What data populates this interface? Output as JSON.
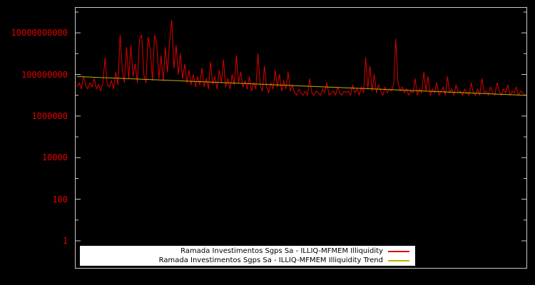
{
  "window": {
    "background": "#000000"
  },
  "chart_data": {
    "type": "line",
    "title": "",
    "xlabel": "",
    "ylabel": "",
    "axis_color": "#c8c8c8",
    "grid": false,
    "x_axis": {
      "tick_labels": []
    },
    "y_axis": {
      "scale": "log",
      "tick_label_color": "#e00000",
      "tick_labels": [
        "1",
        "100",
        "10000",
        "1000000",
        "100000000",
        "10000000000"
      ],
      "tick_values": [
        1,
        100,
        10000,
        1000000,
        100000000,
        10000000000
      ],
      "ylim": [
        0.05,
        160000000000.0
      ]
    },
    "legend": {
      "position": "bottom-center",
      "background": "#ffffff",
      "text_color": "#000000"
    },
    "series": [
      {
        "name": "Ramada Investimentos Sgps Sa - ILLIQ-MFMEM Illiquidity",
        "color": "#e00000",
        "values": [
          25000000.0,
          40000000.0,
          20000000.0,
          80000000.0,
          32000000.0,
          20000000.0,
          40000000.0,
          25000000.0,
          63000000.0,
          20000000.0,
          32000000.0,
          16000000.0,
          40000000.0,
          630000000.0,
          32000000.0,
          25000000.0,
          50000000.0,
          20000000.0,
          130000000.0,
          32000000.0,
          8000000000.0,
          160000000.0,
          40000000.0,
          2000000000.0,
          63000000.0,
          2500000000.0,
          80000000.0,
          320000000.0,
          40000000.0,
          5000000000.0,
          8000000000.0,
          100000000.0,
          40000000.0,
          6300000000.0,
          1600000000.0,
          50000000.0,
          8000000000.0,
          3200000000.0,
          63000000.0,
          800000000.0,
          50000000.0,
          2000000000.0,
          130000000.0,
          4000000000.0,
          40000000000.0,
          200000000.0,
          2500000000.0,
          100000000.0,
          1000000000.0,
          63000000.0,
          320000000.0,
          40000000.0,
          160000000.0,
          32000000.0,
          100000000.0,
          25000000.0,
          80000000.0,
          32000000.0,
          200000000.0,
          25000000.0,
          63000000.0,
          20000000.0,
          400000000.0,
          32000000.0,
          80000000.0,
          20000000.0,
          160000000.0,
          40000000.0,
          500000000.0,
          25000000.0,
          63000000.0,
          20000000.0,
          100000000.0,
          32000000.0,
          800000000.0,
          40000000.0,
          130000000.0,
          25000000.0,
          50000000.0,
          20000000.0,
          80000000.0,
          16000000.0,
          40000000.0,
          20000000.0,
          1000000000.0,
          32000000.0,
          16000000.0,
          250000000.0,
          25000000.0,
          13000000.0,
          40000000.0,
          20000000.0,
          160000000.0,
          25000000.0,
          100000000.0,
          16000000.0,
          50000000.0,
          20000000.0,
          130000000.0,
          16000000.0,
          32000000.0,
          13000000.0,
          10000000.0,
          20000000.0,
          13000000.0,
          10000000.0,
          16000000.0,
          10000000.0,
          63000000.0,
          13000000.0,
          10000000.0,
          16000000.0,
          13000000.0,
          10000000.0,
          20000000.0,
          13000000.0,
          40000000.0,
          10000000.0,
          13000000.0,
          16000000.0,
          10000000.0,
          25000000.0,
          13000000.0,
          10000000.0,
          16000000.0,
          13000000.0,
          16000000.0,
          10000000.0,
          32000000.0,
          13000000.0,
          20000000.0,
          10000000.0,
          25000000.0,
          13000000.0,
          630000000.0,
          20000000.0,
          250000000.0,
          16000000.0,
          100000000.0,
          13000000.0,
          32000000.0,
          16000000.0,
          10000000.0,
          25000000.0,
          13000000.0,
          20000000.0,
          16000000.0,
          32000000.0,
          5000000000.0,
          40000000.0,
          16000000.0,
          25000000.0,
          13000000.0,
          20000000.0,
          10000000.0,
          16000000.0,
          13000000.0,
          63000000.0,
          10000000.0,
          20000000.0,
          13000000.0,
          130000000.0,
          16000000.0,
          80000000.0,
          10000000.0,
          20000000.0,
          13000000.0,
          40000000.0,
          10000000.0,
          16000000.0,
          25000000.0,
          10000000.0,
          80000000.0,
          13000000.0,
          20000000.0,
          10000000.0,
          32000000.0,
          13000000.0,
          16000000.0,
          10000000.0,
          20000000.0,
          13000000.0,
          10000000.0,
          40000000.0,
          13000000.0,
          10000000.0,
          20000000.0,
          10000000.0,
          63000000.0,
          13000000.0,
          16000000.0,
          10000000.0,
          25000000.0,
          13000000.0,
          10000000.0,
          40000000.0,
          16000000.0,
          10000000.0,
          20000000.0,
          13000000.0,
          32000000.0,
          10000000.0,
          16000000.0,
          13000000.0,
          25000000.0,
          10000000.0,
          16000000.0,
          13000000.0,
          10000000.0
        ]
      },
      {
        "name": "Ramada Investimentos Sgps Sa - ILLIQ-MFMEM Illiquidity Trend",
        "color": "#bdb200",
        "trend": {
          "start": 80000000.0,
          "end": 10000000.0
        }
      }
    ]
  }
}
